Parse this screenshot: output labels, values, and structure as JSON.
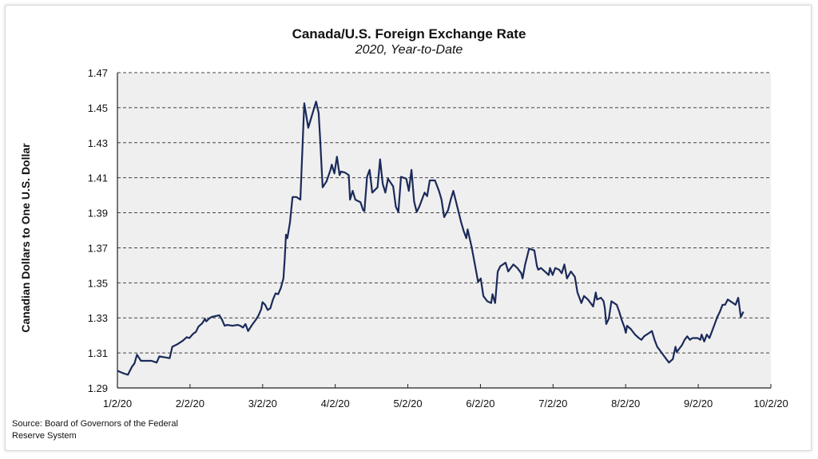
{
  "chart_data": {
    "type": "line",
    "title": "Canada/U.S. Foreign Exchange Rate",
    "subtitle": "2020, Year-to-Date",
    "xlabel": "",
    "ylabel": "Canadian Dollars to One U.S. Dollar",
    "ylim": [
      1.29,
      1.47
    ],
    "yticks": [
      "1.29",
      "1.31",
      "1.33",
      "1.35",
      "1.37",
      "1.39",
      "1.41",
      "1.43",
      "1.45",
      "1.47"
    ],
    "xticks": [
      "1/2/20",
      "2/2/20",
      "3/2/20",
      "4/2/20",
      "5/2/20",
      "6/2/20",
      "7/2/20",
      "8/2/20",
      "9/2/20",
      "10/2/20"
    ],
    "grid": "horizontal dashed",
    "legend": "none",
    "line_color": "#1b2a5a",
    "plot_background": "#efefef",
    "series": [
      {
        "name": "CAD per USD",
        "points": [
          [
            0,
            1.2998
          ],
          [
            4,
            1.2985
          ],
          [
            8,
            1.2975
          ],
          [
            11,
            1.302
          ],
          [
            13,
            1.304
          ],
          [
            15,
            1.309
          ],
          [
            18,
            1.3055
          ],
          [
            22,
            1.3055
          ],
          [
            26,
            1.3055
          ],
          [
            28,
            1.305
          ],
          [
            30,
            1.3045
          ],
          [
            32,
            1.308
          ],
          [
            36,
            1.3075
          ],
          [
            40,
            1.307
          ],
          [
            42,
            1.3135
          ],
          [
            46,
            1.315
          ],
          [
            50,
            1.317
          ],
          [
            53,
            1.319
          ],
          [
            55,
            1.3185
          ],
          [
            58,
            1.321
          ],
          [
            60,
            1.322
          ],
          [
            62,
            1.325
          ],
          [
            65,
            1.327
          ],
          [
            67,
            1.3295
          ],
          [
            68,
            1.328
          ],
          [
            70,
            1.3295
          ],
          [
            72,
            1.3305
          ],
          [
            75,
            1.331
          ],
          [
            78,
            1.3315
          ],
          [
            80,
            1.329
          ],
          [
            82,
            1.3255
          ],
          [
            84,
            1.326
          ],
          [
            88,
            1.3255
          ],
          [
            92,
            1.326
          ],
          [
            94,
            1.3255
          ],
          [
            96,
            1.3245
          ],
          [
            98,
            1.3265
          ],
          [
            100,
            1.3225
          ],
          [
            103,
            1.326
          ],
          [
            106,
            1.329
          ],
          [
            108,
            1.3315
          ],
          [
            110,
            1.335
          ],
          [
            111,
            1.339
          ],
          [
            113,
            1.3375
          ],
          [
            115,
            1.3345
          ],
          [
            117,
            1.3355
          ],
          [
            119,
            1.3405
          ],
          [
            121,
            1.344
          ],
          [
            123,
            1.3435
          ],
          [
            125,
            1.347
          ],
          [
            127,
            1.3525
          ],
          [
            128,
            1.3635
          ],
          [
            129,
            1.3775
          ],
          [
            130,
            1.3755
          ],
          [
            132,
            1.3845
          ],
          [
            134,
            1.399
          ],
          [
            137,
            1.399
          ],
          [
            140,
            1.3975
          ],
          [
            143,
            1.4525
          ],
          [
            146,
            1.4385
          ],
          [
            150,
            1.4485
          ],
          [
            152,
            1.4535
          ],
          [
            154,
            1.447
          ],
          [
            155,
            1.4335
          ],
          [
            157,
            1.4045
          ],
          [
            160,
            1.408
          ],
          [
            163,
            1.4145
          ],
          [
            164,
            1.4175
          ],
          [
            166,
            1.4125
          ],
          [
            168,
            1.422
          ],
          [
            170,
            1.4115
          ],
          [
            171,
            1.4135
          ],
          [
            174,
            1.413
          ],
          [
            177,
            1.4115
          ],
          [
            178,
            1.3975
          ],
          [
            180,
            1.4025
          ],
          [
            182,
            1.3975
          ],
          [
            186,
            1.396
          ],
          [
            188,
            1.3915
          ],
          [
            189,
            1.391
          ],
          [
            191,
            1.4105
          ],
          [
            193,
            1.4145
          ],
          [
            195,
            1.4015
          ],
          [
            199,
            1.4045
          ],
          [
            201,
            1.4205
          ],
          [
            203,
            1.4065
          ],
          [
            205,
            1.4015
          ],
          [
            207,
            1.4095
          ],
          [
            211,
            1.405
          ],
          [
            213,
            1.3935
          ],
          [
            215,
            1.3905
          ],
          [
            217,
            1.4105
          ],
          [
            221,
            1.4095
          ],
          [
            223,
            1.4025
          ],
          [
            225,
            1.4145
          ],
          [
            227,
            1.3965
          ],
          [
            229,
            1.3905
          ],
          [
            231,
            1.3935
          ],
          [
            235,
            1.4015
          ],
          [
            237,
            1.3995
          ],
          [
            239,
            1.4085
          ],
          [
            243,
            1.4085
          ],
          [
            246,
            1.4025
          ],
          [
            248,
            1.3975
          ],
          [
            250,
            1.3875
          ],
          [
            253,
            1.3915
          ],
          [
            255,
            1.3975
          ],
          [
            257,
            1.4025
          ],
          [
            260,
            1.3935
          ],
          [
            263,
            1.3845
          ],
          [
            265,
            1.3795
          ],
          [
            267,
            1.3755
          ],
          [
            268,
            1.3805
          ],
          [
            271,
            1.3705
          ],
          [
            274,
            1.3585
          ],
          [
            276,
            1.3505
          ],
          [
            278,
            1.3525
          ],
          [
            280,
            1.3425
          ],
          [
            283,
            1.3395
          ],
          [
            286,
            1.3385
          ],
          [
            287,
            1.3435
          ],
          [
            289,
            1.3385
          ],
          [
            291,
            1.3565
          ],
          [
            293,
            1.3595
          ],
          [
            295,
            1.3605
          ],
          [
            297,
            1.3615
          ],
          [
            299,
            1.3565
          ],
          [
            301,
            1.3585
          ],
          [
            303,
            1.3605
          ],
          [
            306,
            1.3585
          ],
          [
            309,
            1.3555
          ],
          [
            310,
            1.3525
          ],
          [
            312,
            1.3605
          ],
          [
            314,
            1.3665
          ],
          [
            315,
            1.3695
          ],
          [
            319,
            1.3685
          ],
          [
            321,
            1.3595
          ],
          [
            322,
            1.3575
          ],
          [
            324,
            1.3585
          ],
          [
            327,
            1.3565
          ],
          [
            330,
            1.3545
          ],
          [
            331,
            1.3585
          ],
          [
            333,
            1.3545
          ],
          [
            335,
            1.3585
          ],
          [
            338,
            1.3575
          ],
          [
            340,
            1.3555
          ],
          [
            342,
            1.3605
          ],
          [
            344,
            1.3525
          ],
          [
            347,
            1.3565
          ],
          [
            350,
            1.3535
          ],
          [
            352,
            1.3445
          ],
          [
            355,
            1.3385
          ],
          [
            357,
            1.3425
          ],
          [
            360,
            1.3405
          ],
          [
            363,
            1.3375
          ],
          [
            364,
            1.3365
          ],
          [
            366,
            1.3445
          ],
          [
            367,
            1.3405
          ],
          [
            370,
            1.3415
          ],
          [
            372,
            1.3395
          ],
          [
            373,
            1.3355
          ],
          [
            374,
            1.3265
          ],
          [
            376,
            1.3295
          ],
          [
            378,
            1.3395
          ],
          [
            382,
            1.3375
          ],
          [
            384,
            1.3335
          ],
          [
            386,
            1.3285
          ],
          [
            388,
            1.3245
          ],
          [
            389,
            1.3215
          ],
          [
            390,
            1.3255
          ],
          [
            393,
            1.3235
          ],
          [
            396,
            1.3205
          ],
          [
            399,
            1.3185
          ],
          [
            401,
            1.3175
          ],
          [
            403,
            1.3195
          ],
          [
            407,
            1.3215
          ],
          [
            409,
            1.3225
          ],
          [
            411,
            1.3175
          ],
          [
            413,
            1.3135
          ],
          [
            416,
            1.3105
          ],
          [
            418,
            1.3085
          ],
          [
            420,
            1.3065
          ],
          [
            422,
            1.3045
          ],
          [
            425,
            1.3065
          ],
          [
            427,
            1.3135
          ],
          [
            428,
            1.3105
          ],
          [
            430,
            1.3125
          ],
          [
            432,
            1.3145
          ],
          [
            434,
            1.3175
          ],
          [
            436,
            1.3195
          ],
          [
            438,
            1.3175
          ],
          [
            440,
            1.3185
          ],
          [
            444,
            1.3185
          ],
          [
            446,
            1.3175
          ],
          [
            447,
            1.3205
          ],
          [
            449,
            1.3165
          ],
          [
            451,
            1.3205
          ],
          [
            453,
            1.3185
          ],
          [
            455,
            1.3225
          ],
          [
            457,
            1.3265
          ],
          [
            459,
            1.3305
          ],
          [
            461,
            1.3335
          ],
          [
            463,
            1.3375
          ],
          [
            465,
            1.3375
          ],
          [
            467,
            1.3405
          ],
          [
            471,
            1.3385
          ],
          [
            473,
            1.3375
          ],
          [
            475,
            1.3415
          ],
          [
            477,
            1.3305
          ],
          [
            479,
            1.3335
          ]
        ],
        "x_unit": "approx. pixel index along x-axis from 1/2/20 (0) to ~10/2/20 (~500); dates interpolate between monthly ticks"
      }
    ],
    "annotations": [],
    "source_note": "Source:  Board of Governors of the Federal Reserve System"
  }
}
